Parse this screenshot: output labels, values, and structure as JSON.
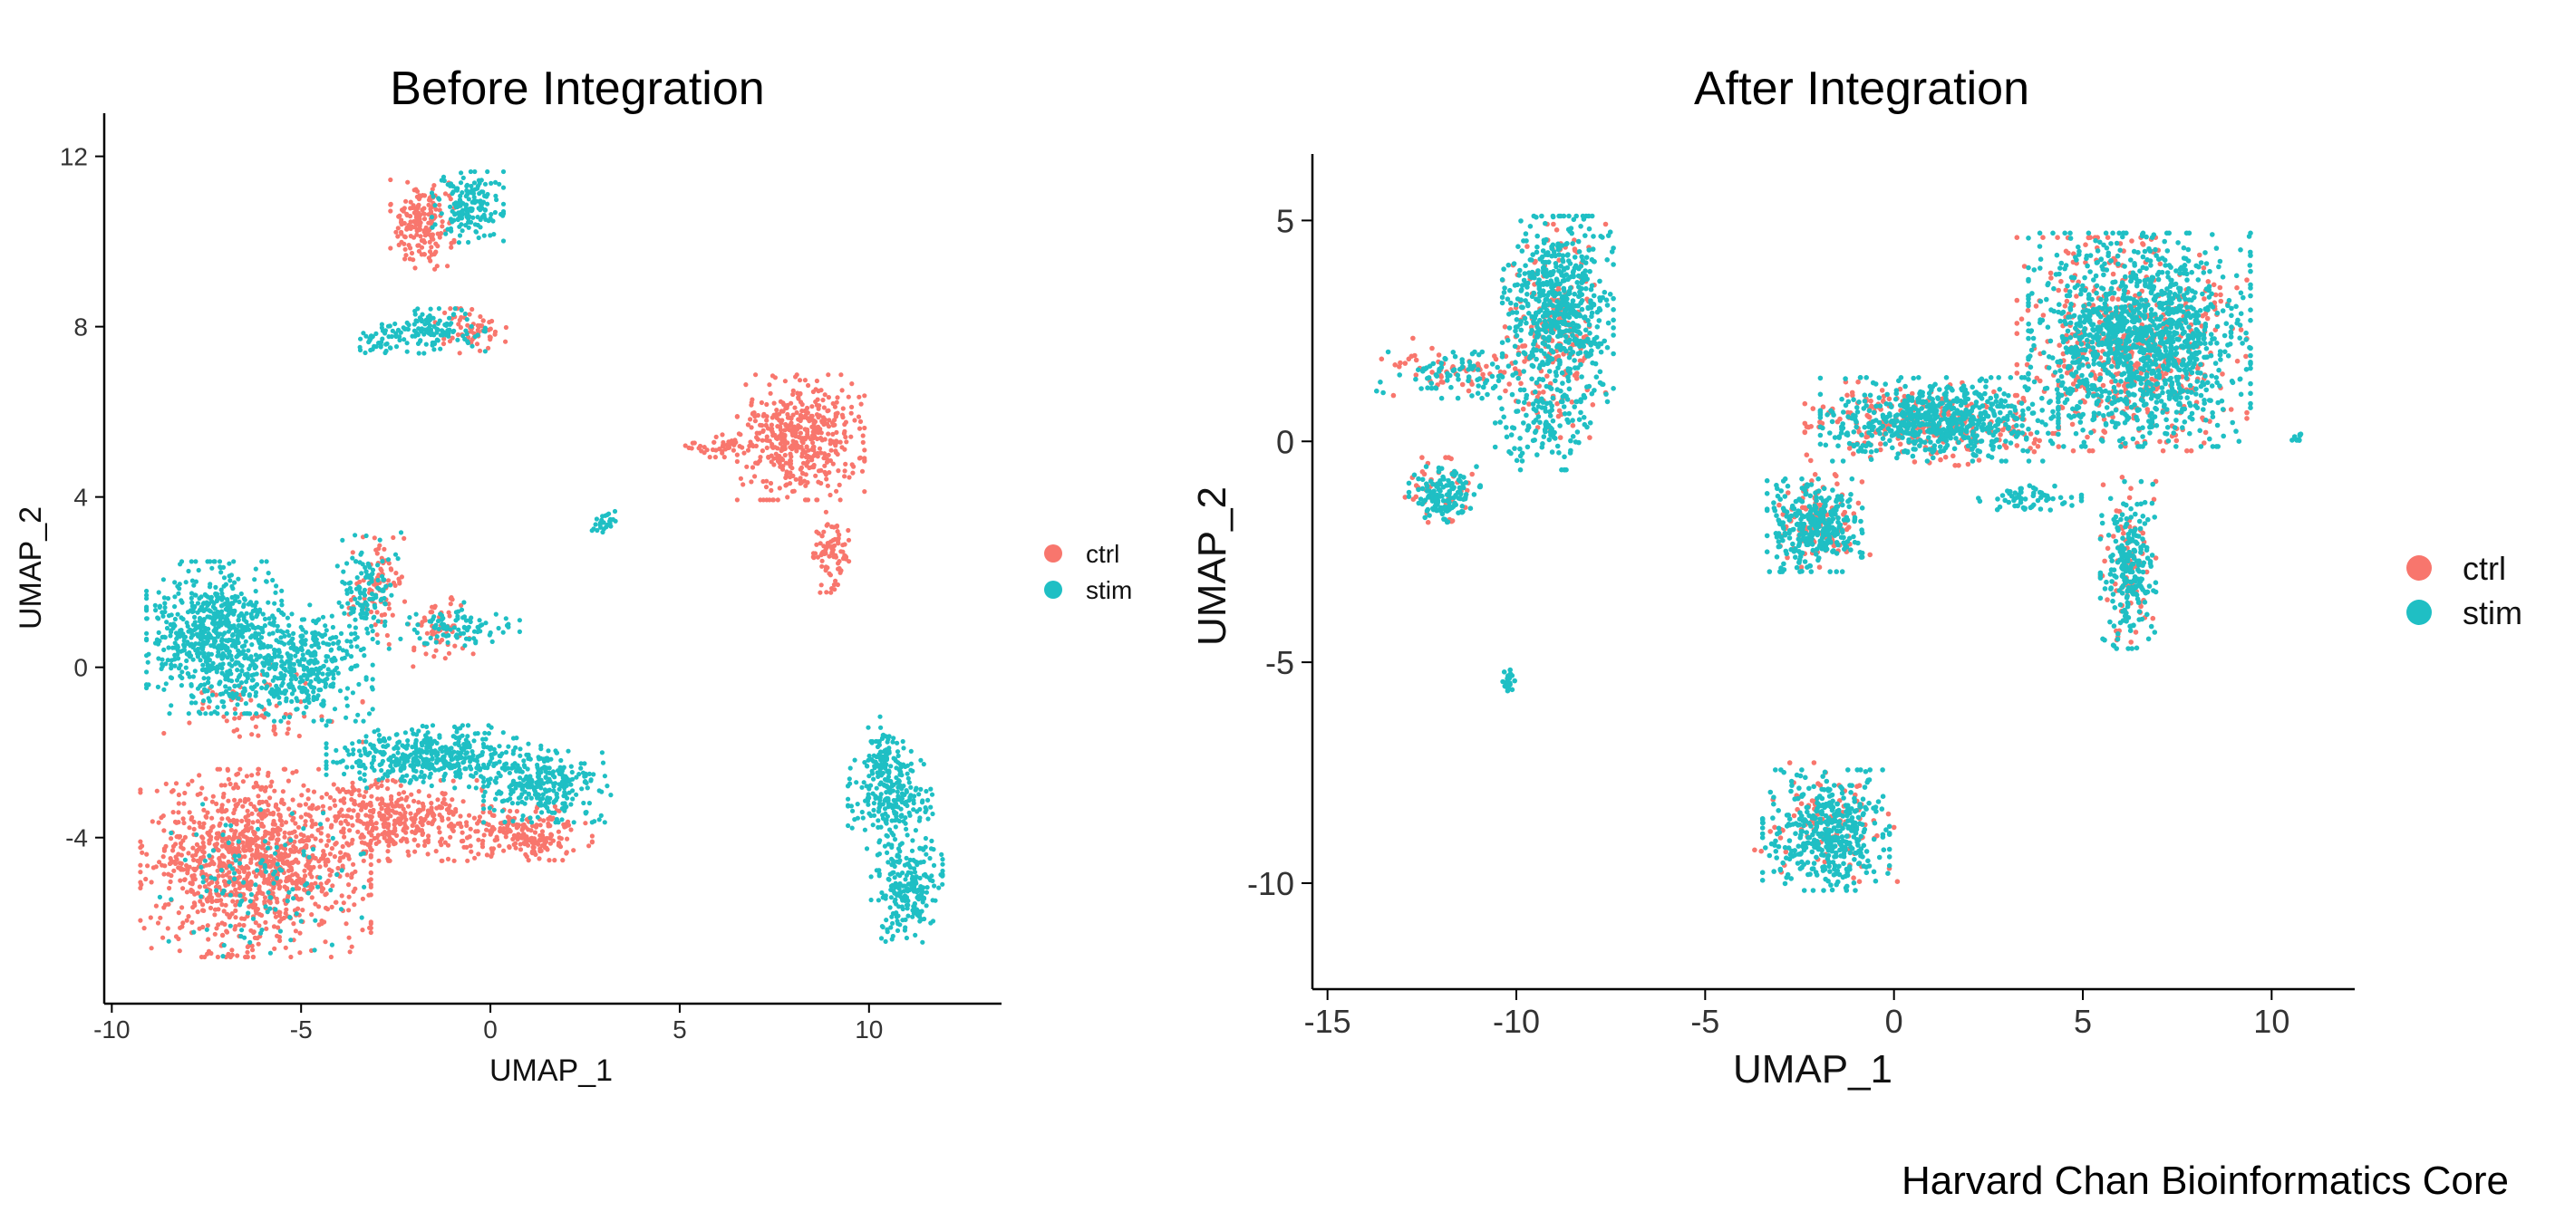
{
  "credit": "Harvard Chan Bioinformatics Core",
  "colors": {
    "ctrl": "#F8766D",
    "stim": "#1FBFC4"
  },
  "chart_data": [
    {
      "type": "scatter",
      "title": "Before Integration",
      "xlabel": "UMAP_1",
      "ylabel": "UMAP_2",
      "xlim": [
        -10.2,
        13.5
      ],
      "ylim": [
        -7.9,
        12.8
      ],
      "xticks": [
        -10,
        -5,
        0,
        5,
        10
      ],
      "yticks": [
        -4,
        0,
        4,
        8,
        12
      ],
      "legend": {
        "position": "right",
        "entries": [
          "ctrl",
          "stim"
        ]
      },
      "series": [
        {
          "name": "ctrl",
          "clusters": [
            {
              "cx": -6.2,
              "cy": -4.6,
              "rx": 2.9,
              "ry": 2.1,
              "n": 1100
            },
            {
              "cx": -2.5,
              "cy": -3.6,
              "rx": 2.2,
              "ry": 0.9,
              "n": 350
            },
            {
              "cx": 0.8,
              "cy": -3.9,
              "rx": 1.8,
              "ry": 0.6,
              "n": 220
            },
            {
              "cx": 8.2,
              "cy": 5.4,
              "rx": 1.6,
              "ry": 1.4,
              "n": 480
            },
            {
              "cx": 9.0,
              "cy": 2.7,
              "rx": 0.5,
              "ry": 0.9,
              "n": 90
            },
            {
              "cx": 6.2,
              "cy": 5.2,
              "rx": 1.0,
              "ry": 0.25,
              "n": 50
            },
            {
              "cx": -1.8,
              "cy": 10.4,
              "rx": 0.8,
              "ry": 1.0,
              "n": 180
            },
            {
              "cx": -0.5,
              "cy": 7.9,
              "rx": 1.0,
              "ry": 0.5,
              "n": 60
            },
            {
              "cx": -3.0,
              "cy": 1.8,
              "rx": 0.7,
              "ry": 1.2,
              "n": 80
            },
            {
              "cx": -1.4,
              "cy": 0.8,
              "rx": 0.9,
              "ry": 0.8,
              "n": 60
            },
            {
              "cx": -6.0,
              "cy": -1.0,
              "rx": 2.5,
              "ry": 1.0,
              "n": 60
            }
          ]
        },
        {
          "name": "stim",
          "clusters": [
            {
              "cx": -7.3,
              "cy": 0.7,
              "rx": 1.7,
              "ry": 1.7,
              "n": 700
            },
            {
              "cx": -5.0,
              "cy": 0.1,
              "rx": 1.8,
              "ry": 1.3,
              "n": 400
            },
            {
              "cx": -1.5,
              "cy": -2.1,
              "rx": 2.7,
              "ry": 0.7,
              "n": 450
            },
            {
              "cx": 1.5,
              "cy": -2.8,
              "rx": 1.6,
              "ry": 0.8,
              "n": 280
            },
            {
              "cx": -3.2,
              "cy": 1.8,
              "rx": 0.8,
              "ry": 1.3,
              "n": 120
            },
            {
              "cx": -0.8,
              "cy": 1.0,
              "rx": 1.5,
              "ry": 0.5,
              "n": 90
            },
            {
              "cx": -6.0,
              "cy": -5.0,
              "rx": 2.6,
              "ry": 1.7,
              "n": 120
            },
            {
              "cx": -0.6,
              "cy": 10.8,
              "rx": 0.9,
              "ry": 0.8,
              "n": 170
            },
            {
              "cx": -1.5,
              "cy": 7.9,
              "rx": 1.3,
              "ry": 0.5,
              "n": 120
            },
            {
              "cx": -2.8,
              "cy": 7.7,
              "rx": 0.7,
              "ry": 0.3,
              "n": 40
            },
            {
              "cx": 10.6,
              "cy": -3.0,
              "rx": 1.1,
              "ry": 1.2,
              "n": 250
            },
            {
              "cx": 11.0,
              "cy": -5.2,
              "rx": 0.9,
              "ry": 1.2,
              "n": 230
            },
            {
              "cx": 10.4,
              "cy": -2.0,
              "rx": 0.4,
              "ry": 0.8,
              "n": 60
            },
            {
              "cx": 3.0,
              "cy": 3.4,
              "rx": 0.3,
              "ry": 0.25,
              "n": 25
            }
          ]
        }
      ]
    },
    {
      "type": "scatter",
      "title": "After Integration",
      "xlabel": "UMAP_1",
      "ylabel": "UMAP_2",
      "xlim": [
        -15.4,
        12.2
      ],
      "ylim": [
        -12.4,
        6.3
      ],
      "xticks": [
        -15,
        -10,
        -5,
        0,
        5,
        10
      ],
      "yticks": [
        -10,
        -5,
        0,
        5
      ],
      "legend": {
        "position": "right",
        "entries": [
          "ctrl",
          "stim"
        ]
      },
      "series": [
        {
          "name": "ctrl",
          "clusters": [
            {
              "cx": -9.0,
              "cy": 2.5,
              "rx": 1.3,
              "ry": 2.3,
              "n": 180
            },
            {
              "cx": -11.5,
              "cy": 1.6,
              "rx": 2.2,
              "ry": 0.7,
              "n": 60
            },
            {
              "cx": -12.0,
              "cy": -1.1,
              "rx": 0.9,
              "ry": 0.7,
              "n": 40
            },
            {
              "cx": 6.3,
              "cy": 2.2,
              "rx": 2.9,
              "ry": 2.3,
              "n": 500
            },
            {
              "cx": 1.0,
              "cy": 0.4,
              "rx": 3.2,
              "ry": 0.9,
              "n": 260
            },
            {
              "cx": -2.0,
              "cy": -1.8,
              "rx": 1.3,
              "ry": 1.0,
              "n": 110
            },
            {
              "cx": 6.2,
              "cy": -2.7,
              "rx": 0.7,
              "ry": 1.8,
              "n": 80
            },
            {
              "cx": -1.8,
              "cy": -8.6,
              "rx": 1.8,
              "ry": 1.3,
              "n": 90
            }
          ]
        },
        {
          "name": "stim",
          "clusters": [
            {
              "cx": -8.9,
              "cy": 3.0,
              "rx": 1.4,
              "ry": 2.0,
              "n": 600
            },
            {
              "cx": -9.3,
              "cy": 0.3,
              "rx": 1.2,
              "ry": 0.9,
              "n": 120
            },
            {
              "cx": -11.6,
              "cy": 1.5,
              "rx": 2.0,
              "ry": 0.5,
              "n": 80
            },
            {
              "cx": -11.9,
              "cy": -1.2,
              "rx": 0.9,
              "ry": 0.6,
              "n": 140
            },
            {
              "cx": 6.5,
              "cy": 2.3,
              "rx": 2.8,
              "ry": 2.3,
              "n": 1300
            },
            {
              "cx": 1.2,
              "cy": 0.5,
              "rx": 3.0,
              "ry": 0.9,
              "n": 650
            },
            {
              "cx": -2.1,
              "cy": -1.9,
              "rx": 1.2,
              "ry": 1.0,
              "n": 330
            },
            {
              "cx": 6.2,
              "cy": -2.8,
              "rx": 0.7,
              "ry": 1.8,
              "n": 230
            },
            {
              "cx": 3.6,
              "cy": -1.3,
              "rx": 1.3,
              "ry": 0.3,
              "n": 60
            },
            {
              "cx": -1.8,
              "cy": -8.8,
              "rx": 1.6,
              "ry": 1.3,
              "n": 420
            },
            {
              "cx": -10.2,
              "cy": -5.4,
              "rx": 0.15,
              "ry": 0.35,
              "n": 25
            },
            {
              "cx": 10.7,
              "cy": 0.1,
              "rx": 0.15,
              "ry": 0.15,
              "n": 10
            }
          ]
        }
      ]
    }
  ]
}
